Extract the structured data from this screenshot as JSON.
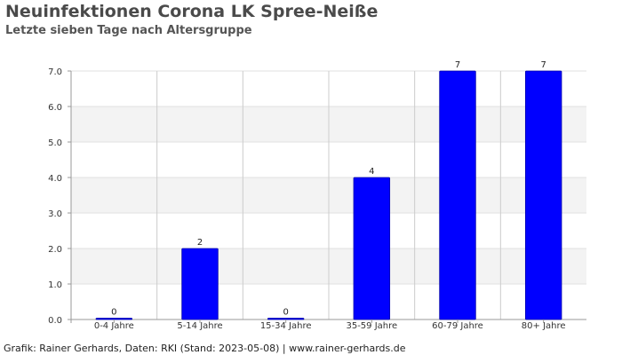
{
  "title": "Neuinfektionen Corona LK Spree-Neiße",
  "subtitle": "Letzte sieben Tage nach Altersgruppe",
  "footer": "Grafik: Rainer Gerhards, Daten: RKI (Stand: 2023-05-08) | www.rainer-gerhards.de",
  "chart_data": {
    "type": "bar",
    "title": "Neuinfektionen Corona LK Spree-Neiße",
    "subtitle": "Letzte sieben Tage nach Altersgruppe",
    "categories": [
      "0-4 Jahre",
      "5-14 Jahre",
      "15-34 Jahre",
      "35-59 Jahre",
      "60-79 Jahre",
      "80+ Jahre"
    ],
    "values": [
      0,
      2,
      0,
      4,
      7,
      7
    ],
    "data_labels": [
      "0",
      "2",
      "0",
      "4",
      "7",
      "7"
    ],
    "yticks": [
      "0.0",
      "1.0",
      "2.0",
      "3.0",
      "4.0",
      "5.0",
      "6.0",
      "7.0"
    ],
    "ylim": [
      0,
      7
    ],
    "xlabel": "",
    "ylabel": "",
    "grid": true,
    "bar_color": "#0000ff"
  }
}
